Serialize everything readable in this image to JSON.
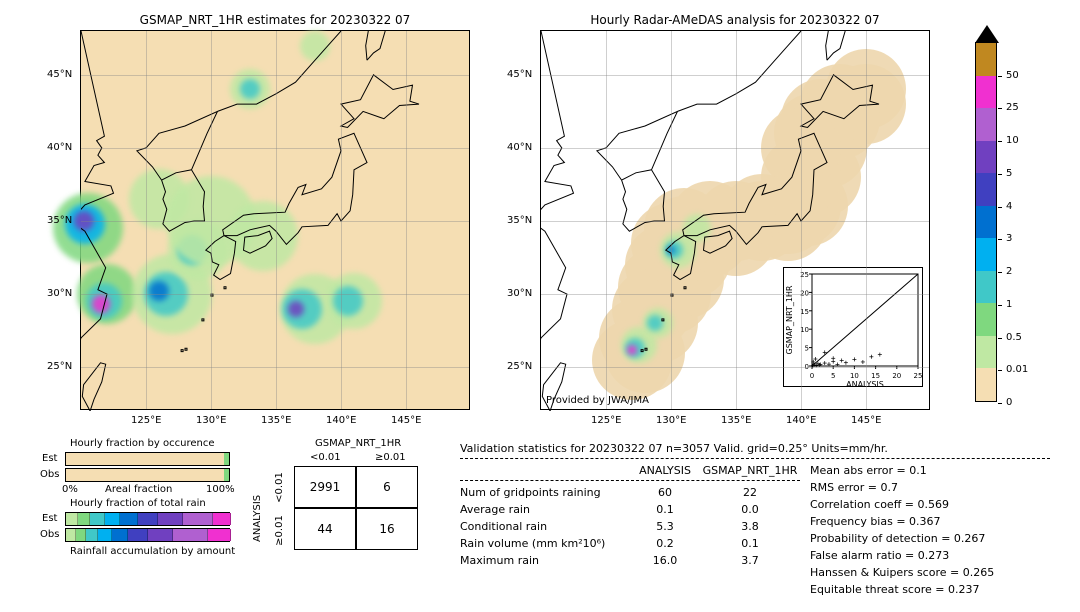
{
  "maps": {
    "left": {
      "title": "GSMAP_NRT_1HR estimates for 20230322 07"
    },
    "right": {
      "title": "Hourly Radar-AMeDAS analysis for 20230322 07",
      "attribution": "Provided by JWA/JMA"
    },
    "lon_ticks": [
      "125°E",
      "130°E",
      "135°E",
      "140°E",
      "145°E"
    ],
    "lat_ticks": [
      "25°N",
      "30°N",
      "35°N",
      "40°N",
      "45°N"
    ],
    "lon_range": [
      120,
      150
    ],
    "lat_range": [
      22,
      48
    ]
  },
  "colorbar": {
    "labels": [
      "0",
      "0.01",
      "0.5",
      "1",
      "2",
      "3",
      "4",
      "5",
      "10",
      "25",
      "50"
    ],
    "colors": [
      "#f5deb3",
      "#bfe8a3",
      "#7fd87f",
      "#40c8c8",
      "#00b0f0",
      "#0070d0",
      "#4040c0",
      "#7040c0",
      "#b060d0",
      "#f030d0",
      "#c08820"
    ]
  },
  "hourly_fraction": {
    "occurrence_title": "Hourly fraction by occurence",
    "total_title": "Hourly fraction of total rain",
    "accumulation_title": "Rainfall accumulation by amount",
    "rows": [
      "Est",
      "Obs"
    ],
    "x_left": "0%",
    "x_right": "100%",
    "x_label": "Areal fraction",
    "occurrence_est": 0.97,
    "occurrence_obs": 0.97,
    "rain_colors": [
      "#bfe8a3",
      "#7fd87f",
      "#40c8c8",
      "#00b0f0",
      "#0070d0",
      "#4040c0",
      "#7040c0",
      "#b060d0",
      "#f030d0"
    ]
  },
  "contingency": {
    "col_header": "GSMAP_NRT_1HR",
    "row_header": "ANALYSIS",
    "col_labels": [
      "<0.01",
      "≥0.01"
    ],
    "row_labels": [
      "<0.01",
      "≥0.01"
    ],
    "cells": [
      [
        "2991",
        "6"
      ],
      [
        "44",
        "16"
      ]
    ]
  },
  "validation": {
    "title": "Validation statistics for 20230322 07  n=3057 Valid. grid=0.25°  Units=mm/hr.",
    "col_headers": [
      "",
      "ANALYSIS",
      "GSMAP_NRT_1HR"
    ],
    "rows": [
      {
        "label": "Num of gridpoints raining",
        "a": "60",
        "b": "22"
      },
      {
        "label": "Average rain",
        "a": "0.1",
        "b": "0.0"
      },
      {
        "label": "Conditional rain",
        "a": "5.3",
        "b": "3.8"
      },
      {
        "label": "Rain volume (mm km²10⁶)",
        "a": "0.2",
        "b": "0.1"
      },
      {
        "label": "Maximum rain",
        "a": "16.0",
        "b": "3.7"
      }
    ],
    "metrics": [
      {
        "label": "Mean abs error",
        "val": "0.1"
      },
      {
        "label": "RMS error",
        "val": "0.7"
      },
      {
        "label": "Correlation coeff",
        "val": "0.569"
      },
      {
        "label": "Frequency bias",
        "val": "0.367"
      },
      {
        "label": "Probability of detection",
        "val": "0.267"
      },
      {
        "label": "False alarm ratio",
        "val": "0.273"
      },
      {
        "label": "Hanssen & Kuipers score",
        "val": "0.265"
      },
      {
        "label": "Equitable threat score",
        "val": "0.237"
      }
    ]
  },
  "scatter": {
    "xlabel": "ANALYSIS",
    "ylabel": "GSMAP_NRT_1HR",
    "ticks": [
      0,
      5,
      10,
      15,
      20,
      25
    ],
    "max": 25,
    "points": [
      [
        0.2,
        0.1
      ],
      [
        0.5,
        0.3
      ],
      [
        1,
        0.2
      ],
      [
        1.4,
        0.6
      ],
      [
        2,
        0.4
      ],
      [
        3,
        0.8
      ],
      [
        4,
        0.5
      ],
      [
        5,
        1.2
      ],
      [
        6,
        0.4
      ],
      [
        7,
        1.5
      ],
      [
        8,
        0.9
      ],
      [
        10,
        1.8
      ],
      [
        12,
        1.1
      ],
      [
        14,
        2.5
      ],
      [
        16,
        3.1
      ],
      [
        3,
        3.7
      ],
      [
        5,
        2.1
      ],
      [
        0.8,
        1.9
      ],
      [
        1.8,
        0.3
      ],
      [
        0.3,
        1.1
      ]
    ]
  }
}
